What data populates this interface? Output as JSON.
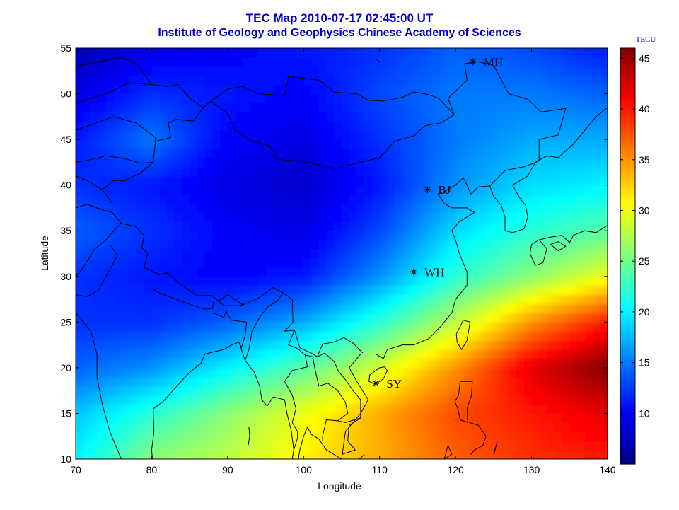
{
  "title": "TEC Map 2010-07-17 02:45:00 UT",
  "subtitle": "Institute of Geology and Geophysics Chinese Academy of Sciences",
  "axes": {
    "xlabel": "Longitude",
    "ylabel": "Latitude",
    "x_ticks": [
      "70",
      "80",
      "90",
      "100",
      "110",
      "120",
      "130",
      "140"
    ],
    "y_ticks": [
      "10",
      "15",
      "20",
      "25",
      "30",
      "35",
      "40",
      "45",
      "50",
      "55"
    ],
    "xlim": [
      70,
      140
    ],
    "ylim": [
      10,
      55
    ]
  },
  "colorbar": {
    "unit": "TECU",
    "range": [
      5,
      46
    ],
    "ticks": [
      "10",
      "15",
      "20",
      "25",
      "30",
      "35",
      "40",
      "45"
    ],
    "colormap": "jet"
  },
  "stations": [
    {
      "label": "MH",
      "lon": 122.3,
      "lat": 53.5
    },
    {
      "label": "BJ",
      "lon": 116.3,
      "lat": 39.5
    },
    {
      "label": "WH",
      "lon": 114.5,
      "lat": 30.5
    },
    {
      "label": "SY",
      "lon": 109.5,
      "lat": 18.3
    }
  ],
  "chart_data": {
    "type": "heatmap",
    "title": "TEC Map 2010-07-17 02:45:00 UT",
    "xlabel": "Longitude",
    "ylabel": "Latitude",
    "lon": [
      70,
      80,
      90,
      100,
      110,
      120,
      130,
      140
    ],
    "lat": [
      55,
      50,
      45,
      40,
      35,
      30,
      25,
      20,
      15,
      10
    ],
    "values": [
      [
        7,
        9,
        10,
        11,
        12,
        14,
        13,
        11
      ],
      [
        9,
        12,
        11,
        10,
        13,
        15,
        15,
        14
      ],
      [
        11,
        15,
        10,
        9,
        12,
        15,
        17,
        17
      ],
      [
        12,
        11,
        9,
        8,
        11,
        16,
        19,
        20
      ],
      [
        14,
        12,
        10,
        9,
        13,
        19,
        22,
        24
      ],
      [
        12,
        11,
        10,
        11,
        16,
        22,
        26,
        30
      ],
      [
        12,
        12,
        14,
        17,
        22,
        28,
        35,
        40
      ],
      [
        14,
        16,
        20,
        24,
        29,
        35,
        42,
        46
      ],
      [
        18,
        22,
        26,
        30,
        34,
        38,
        40,
        42
      ],
      [
        20,
        26,
        28,
        31,
        34,
        37,
        39,
        40
      ]
    ]
  }
}
